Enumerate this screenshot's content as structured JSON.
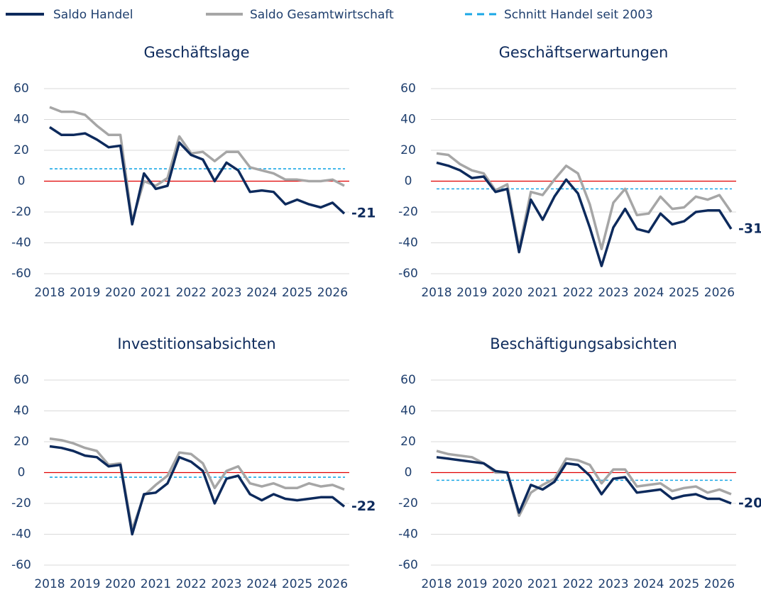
{
  "legend": [
    "Saldo Handel",
    "Saldo Gesamtwirtschaft",
    "Schnitt Handel seit 2003"
  ],
  "chart_data": [
    {
      "type": "line",
      "title": "Geschäftslage",
      "categories": [
        "2018",
        null,
        null,
        "2019",
        null,
        null,
        "2020",
        null,
        null,
        "2021",
        null,
        null,
        "2022",
        null,
        null,
        "2023",
        null,
        null,
        "2024",
        null,
        null,
        "2025",
        null,
        null,
        "2026",
        null
      ],
      "series": [
        {
          "color": "#0d2a5c",
          "values": [
            35,
            30,
            30,
            31,
            27,
            22,
            23,
            -28,
            5,
            -5,
            -3,
            25,
            17,
            14,
            0,
            12,
            7,
            -7,
            -6,
            -7,
            -15,
            -12,
            -15,
            -17,
            -14,
            -21
          ]
        },
        {
          "color": "#a6a6a6",
          "values": [
            48,
            45,
            45,
            43,
            36,
            30,
            30,
            -26,
            0,
            -3,
            2,
            29,
            18,
            19,
            13,
            19,
            19,
            9,
            7,
            5,
            1,
            1,
            0,
            0,
            1,
            -3
          ]
        }
      ],
      "average": {
        "value": 8,
        "color": "#1aa7e6"
      },
      "zero_color": "#e00000",
      "end_label": -21,
      "ylim": [
        -60,
        60
      ],
      "yticks": [
        -60,
        -40,
        -20,
        0,
        20,
        40,
        60
      ],
      "grid": true
    },
    {
      "type": "line",
      "title": "Geschäftserwartungen",
      "categories": [
        "2018",
        null,
        null,
        "2019",
        null,
        null,
        "2020",
        null,
        null,
        "2021",
        null,
        null,
        "2022",
        null,
        null,
        "2023",
        null,
        null,
        "2024",
        null,
        null,
        "2025",
        null,
        null,
        "2026",
        null
      ],
      "series": [
        {
          "color": "#0d2a5c",
          "values": [
            12,
            10,
            7,
            2,
            3,
            -7,
            -5,
            -46,
            -12,
            -25,
            -10,
            1,
            -8,
            -30,
            -55,
            -30,
            -18,
            -31,
            -33,
            -21,
            -28,
            -26,
            -20,
            -19,
            -19,
            -31
          ]
        },
        {
          "color": "#a6a6a6",
          "values": [
            18,
            17,
            11,
            7,
            5,
            -6,
            -2,
            -44,
            -7,
            -9,
            1,
            10,
            5,
            -15,
            -44,
            -14,
            -5,
            -22,
            -21,
            -10,
            -18,
            -17,
            -10,
            -12,
            -9,
            -20
          ]
        }
      ],
      "average": {
        "value": -5,
        "color": "#1aa7e6"
      },
      "zero_color": "#e00000",
      "end_label": -31,
      "ylim": [
        -60,
        60
      ],
      "yticks": [
        -60,
        -40,
        -20,
        0,
        20,
        40,
        60
      ],
      "grid": true
    },
    {
      "type": "line",
      "title": "Investitionsabsichten",
      "categories": [
        "2018",
        null,
        null,
        "2019",
        null,
        null,
        "2020",
        null,
        null,
        "2021",
        null,
        null,
        "2022",
        null,
        null,
        "2023",
        null,
        null,
        "2024",
        null,
        null,
        "2025",
        null,
        null,
        "2026",
        null
      ],
      "series": [
        {
          "color": "#0d2a5c",
          "values": [
            17,
            16,
            14,
            11,
            10,
            4,
            5,
            -40,
            -14,
            -13,
            -7,
            10,
            7,
            1,
            -20,
            -4,
            -2,
            -14,
            -18,
            -14,
            -17,
            -18,
            -17,
            -16,
            -16,
            -22
          ]
        },
        {
          "color": "#a6a6a6",
          "values": [
            22,
            21,
            19,
            16,
            14,
            5,
            6,
            -37,
            -15,
            -8,
            -2,
            13,
            12,
            6,
            -10,
            1,
            4,
            -7,
            -9,
            -7,
            -10,
            -10,
            -7,
            -9,
            -8,
            -11
          ]
        }
      ],
      "average": {
        "value": -3,
        "color": "#1aa7e6"
      },
      "zero_color": "#e00000",
      "end_label": -22,
      "ylim": [
        -60,
        60
      ],
      "yticks": [
        -60,
        -40,
        -20,
        0,
        20,
        40,
        60
      ],
      "grid": true
    },
    {
      "type": "line",
      "title": "Beschäftigungsabsichten",
      "categories": [
        "2018",
        null,
        null,
        "2019",
        null,
        null,
        "2020",
        null,
        null,
        "2021",
        null,
        null,
        "2022",
        null,
        null,
        "2023",
        null,
        null,
        "2024",
        null,
        null,
        "2025",
        null,
        null,
        "2026",
        null
      ],
      "series": [
        {
          "color": "#0d2a5c",
          "values": [
            10,
            9,
            8,
            7,
            6,
            1,
            0,
            -26,
            -8,
            -11,
            -6,
            6,
            5,
            -2,
            -14,
            -4,
            -3,
            -13,
            -12,
            -11,
            -17,
            -15,
            -14,
            -17,
            -17,
            -20
          ]
        },
        {
          "color": "#a6a6a6",
          "values": [
            14,
            12,
            11,
            10,
            6,
            0,
            0,
            -28,
            -13,
            -8,
            -4,
            9,
            8,
            5,
            -7,
            2,
            2,
            -9,
            -8,
            -7,
            -12,
            -10,
            -9,
            -13,
            -11,
            -14
          ]
        }
      ],
      "average": {
        "value": -5,
        "color": "#1aa7e6"
      },
      "zero_color": "#e00000",
      "end_label": -20,
      "ylim": [
        -60,
        60
      ],
      "yticks": [
        -60,
        -40,
        -20,
        0,
        20,
        40,
        60
      ],
      "grid": true
    }
  ]
}
